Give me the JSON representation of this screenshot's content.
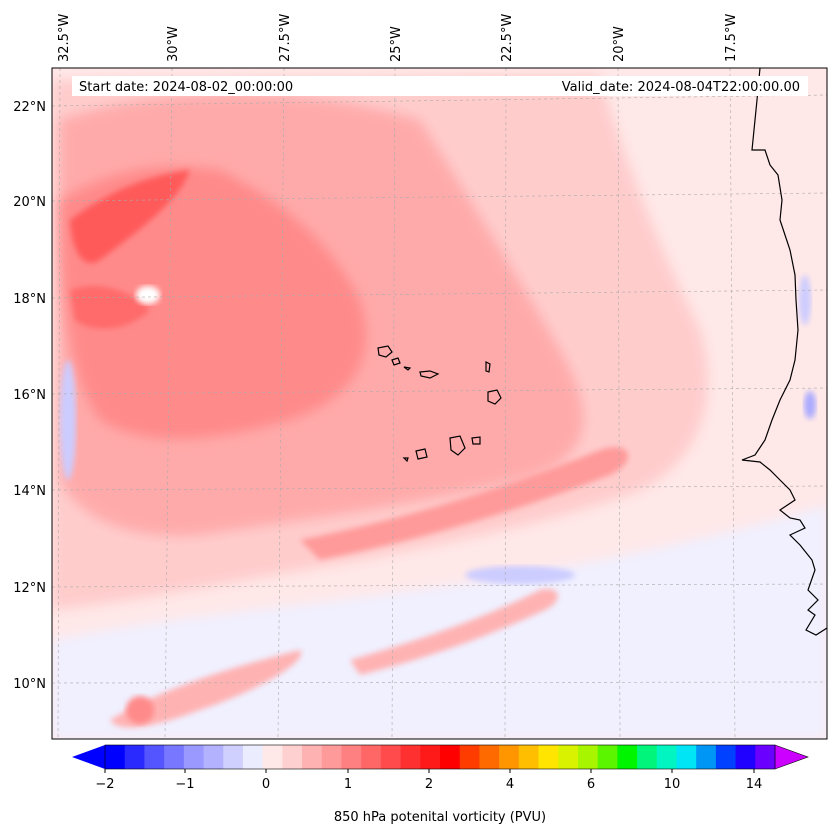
{
  "header": {
    "start_date": "Start date: 2024-08-02_00:00:00",
    "valid_date": "Valid_date: 2024-08-04T22:00:00.00"
  },
  "axes": {
    "lon_labels": [
      "32.5°W",
      "30°W",
      "27.5°W",
      "25°W",
      "22.5°W",
      "20°W",
      "17.5°W"
    ],
    "lat_labels": [
      "22°N",
      "20°N",
      "18°N",
      "16°N",
      "14°N",
      "12°N",
      "10°N"
    ]
  },
  "colorbar": {
    "title": "850 hPa potenital vorticity (PVU)",
    "tick_labels": [
      "−2",
      "−1",
      "0",
      "1",
      "2",
      "4",
      "6",
      "10",
      "14"
    ],
    "colors": [
      "#0000ff",
      "#2a2aff",
      "#5555ff",
      "#7777ff",
      "#9999ff",
      "#b2b2ff",
      "#d0d0ff",
      "#ececff",
      "#ffe8e8",
      "#ffd0d0",
      "#ffb2b2",
      "#ff9a9a",
      "#ff8080",
      "#ff6666",
      "#ff4b4b",
      "#ff3030",
      "#ff1a1a",
      "#ff0000",
      "#ff3c00",
      "#ff6a00",
      "#ff9600",
      "#ffbe00",
      "#ffe500",
      "#d9f200",
      "#a8f500",
      "#5cf500",
      "#00f500",
      "#00f57a",
      "#00f5c0",
      "#00e5f5",
      "#0096f5",
      "#0040ff",
      "#2000ff",
      "#6a00ff"
    ]
  },
  "map_colors": {
    "very_light": "#ffe8e8",
    "light": "#ffcccc",
    "medium": "#ffaaaa",
    "strong": "#ff8080",
    "intense": "#ff5a5a",
    "neg_light": "#eeeeff",
    "neg_medium": "#ccccff",
    "coast": "#000000"
  }
}
